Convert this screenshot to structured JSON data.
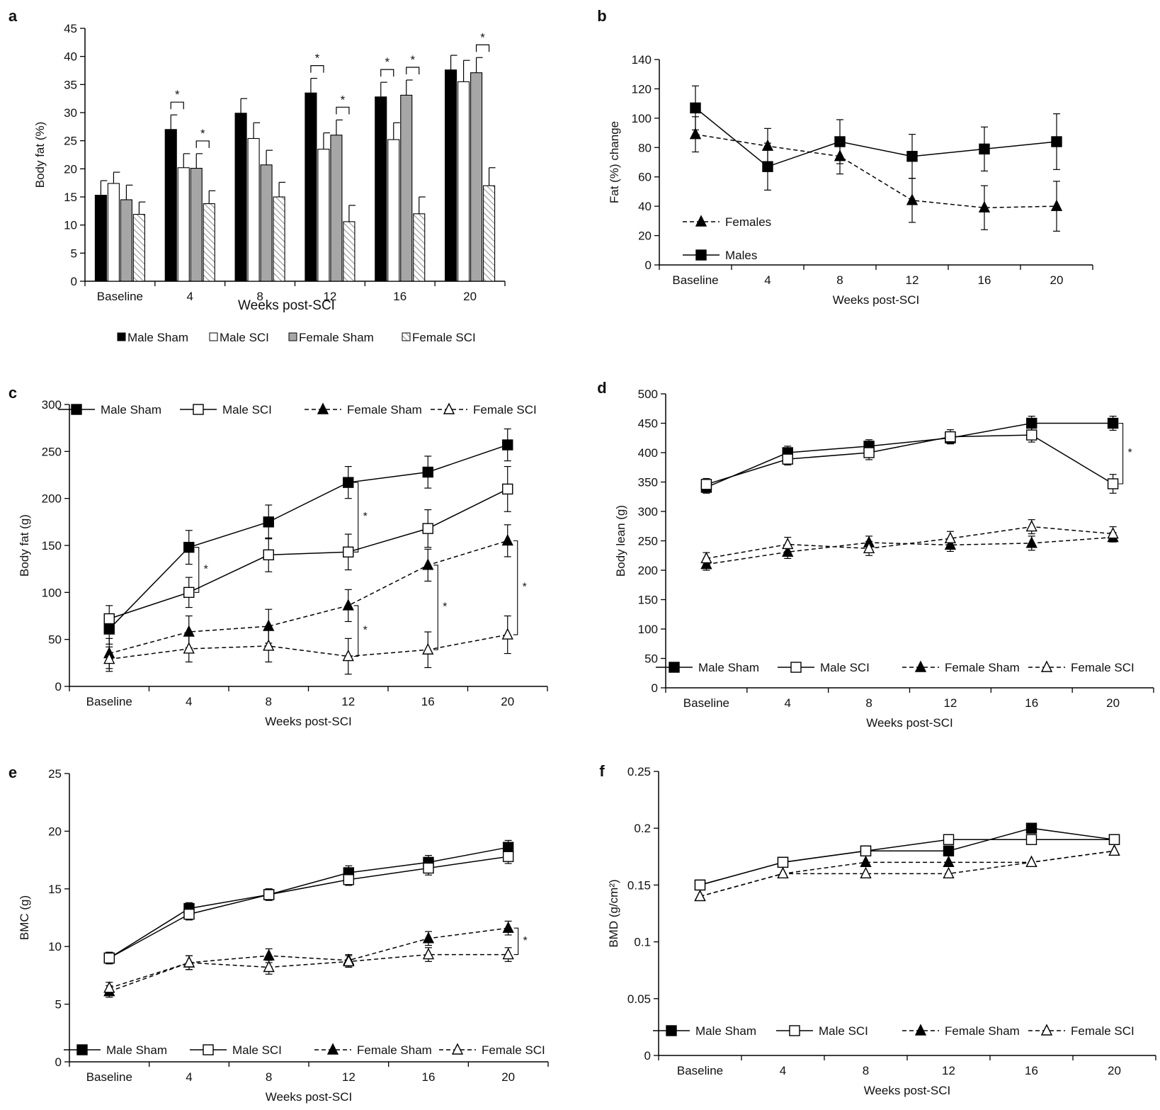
{
  "chart_data": [
    {
      "id": "a",
      "panel_label": "a",
      "type": "bar",
      "categories": [
        "Baseline",
        "4",
        "8",
        "12",
        "16",
        "20"
      ],
      "xlabel": "Weeks post-SCI",
      "ylabel": "Body fat (%)",
      "ylim": [
        0,
        45
      ],
      "yticks": [
        0,
        5,
        10,
        15,
        20,
        25,
        30,
        35,
        40,
        45
      ],
      "series": [
        {
          "name": "Male Sham",
          "fill": "#000000",
          "values": [
            15.3,
            27.0,
            29.9,
            33.5,
            32.8,
            37.6
          ],
          "errors": [
            2.6,
            2.6,
            2.6,
            2.6,
            2.6,
            2.6
          ]
        },
        {
          "name": "Male SCI",
          "fill": "#ffffff",
          "values": [
            17.4,
            20.2,
            25.4,
            23.5,
            25.2,
            35.5
          ],
          "errors": [
            2.0,
            2.5,
            2.8,
            2.9,
            3.0,
            3.8
          ]
        },
        {
          "name": "Female Sham",
          "fill": "#a6a6a6",
          "values": [
            14.5,
            20.1,
            20.7,
            26.0,
            33.1,
            37.1
          ],
          "errors": [
            2.6,
            2.6,
            2.6,
            2.7,
            2.7,
            2.7
          ]
        },
        {
          "name": "Female SCI",
          "fill": "hatch",
          "values": [
            11.9,
            13.8,
            15.0,
            10.6,
            12.0,
            17.0
          ],
          "errors": [
            2.2,
            2.3,
            2.6,
            2.9,
            3.0,
            3.2
          ]
        }
      ],
      "significance": [
        {
          "category": 1,
          "pair": [
            0,
            1
          ],
          "label": "*"
        },
        {
          "category": 1,
          "pair": [
            2,
            3
          ],
          "label": "*"
        },
        {
          "category": 3,
          "pair": [
            0,
            1
          ],
          "label": "*"
        },
        {
          "category": 3,
          "pair": [
            2,
            3
          ],
          "label": "*"
        },
        {
          "category": 4,
          "pair": [
            0,
            1
          ],
          "label": "*"
        },
        {
          "category": 4,
          "pair": [
            2,
            3
          ],
          "label": "*"
        },
        {
          "category": 5,
          "pair": [
            2,
            3
          ],
          "label": "*"
        }
      ],
      "legend": "bottom"
    },
    {
      "id": "b",
      "panel_label": "b",
      "type": "line",
      "categories": [
        "Baseline",
        "4",
        "8",
        "12",
        "16",
        "20"
      ],
      "xlabel": "Weeks post-SCI",
      "ylabel": "Fat (%) change",
      "ylim": [
        0,
        140
      ],
      "yticks": [
        0,
        20,
        40,
        60,
        80,
        100,
        120,
        140
      ],
      "series": [
        {
          "name": "Females",
          "marker": "triangle",
          "filled": true,
          "dashed": true,
          "values": [
            89,
            81,
            74,
            44,
            39,
            40
          ],
          "errors": [
            12,
            12,
            12,
            15,
            15,
            17
          ]
        },
        {
          "name": "Males",
          "marker": "square",
          "filled": true,
          "dashed": false,
          "values": [
            107,
            67,
            84,
            74,
            79,
            84
          ],
          "errors": [
            15,
            16,
            15,
            15,
            15,
            19
          ]
        }
      ],
      "legend": "bottom-left"
    },
    {
      "id": "c",
      "panel_label": "c",
      "type": "line",
      "categories": [
        "Baseline",
        "4",
        "8",
        "12",
        "16",
        "20"
      ],
      "xlabel": "Weeks post-SCI",
      "ylabel": "Body fat (g)",
      "ylim": [
        0,
        300
      ],
      "yticks": [
        0,
        50,
        100,
        150,
        200,
        250,
        300
      ],
      "series": [
        {
          "name": "Male Sham",
          "marker": "square",
          "filled": true,
          "dashed": false,
          "values": [
            61,
            148,
            175,
            217,
            228,
            257
          ],
          "errors": [
            16,
            18,
            18,
            17,
            17,
            17
          ]
        },
        {
          "name": "Male SCI",
          "marker": "square",
          "filled": false,
          "dashed": false,
          "values": [
            72,
            100,
            140,
            143,
            168,
            210
          ],
          "errors": [
            14,
            16,
            18,
            19,
            20,
            24
          ]
        },
        {
          "name": "Female Sham",
          "marker": "triangle",
          "filled": true,
          "dashed": true,
          "values": [
            35,
            58,
            64,
            86,
            129,
            155
          ],
          "errors": [
            16,
            17,
            18,
            17,
            17,
            17
          ]
        },
        {
          "name": "Female SCI",
          "marker": "triangle",
          "filled": false,
          "dashed": true,
          "values": [
            29,
            40,
            43,
            32,
            39,
            55
          ],
          "errors": [
            13,
            14,
            17,
            19,
            19,
            20
          ]
        }
      ],
      "significance": [
        {
          "category": 1,
          "from": 148,
          "to": 100,
          "label": "*"
        },
        {
          "category": 3,
          "from": 217,
          "to": 143,
          "label": "*"
        },
        {
          "category": 3,
          "from": 86,
          "to": 32,
          "label": "*"
        },
        {
          "category": 4,
          "from": 129,
          "to": 39,
          "label": "*"
        },
        {
          "category": 5,
          "from": 155,
          "to": 55,
          "label": "*"
        }
      ],
      "legend": "top"
    },
    {
      "id": "d",
      "panel_label": "d",
      "type": "line",
      "categories": [
        "Baseline",
        "4",
        "8",
        "12",
        "16",
        "20"
      ],
      "xlabel": "Weeks post-SCI",
      "ylabel": "Body lean (g)",
      "ylim": [
        0,
        500
      ],
      "yticks": [
        0,
        50,
        100,
        150,
        200,
        250,
        300,
        350,
        400,
        450,
        500
      ],
      "series": [
        {
          "name": "Male Sham",
          "marker": "square",
          "filled": true,
          "dashed": false,
          "values": [
            341,
            400,
            411,
            425,
            450,
            450
          ],
          "errors": [
            10,
            11,
            11,
            10,
            12,
            12
          ]
        },
        {
          "name": "Male SCI",
          "marker": "square",
          "filled": false,
          "dashed": false,
          "values": [
            346,
            389,
            400,
            427,
            430,
            347
          ],
          "errors": [
            10,
            10,
            12,
            12,
            12,
            16
          ]
        },
        {
          "name": "Female Sham",
          "marker": "triangle",
          "filled": true,
          "dashed": true,
          "values": [
            210,
            231,
            247,
            243,
            246,
            256
          ],
          "errors": [
            10,
            11,
            11,
            11,
            12,
            8
          ]
        },
        {
          "name": "Female SCI",
          "marker": "triangle",
          "filled": false,
          "dashed": true,
          "values": [
            220,
            244,
            237,
            254,
            274,
            262
          ],
          "errors": [
            10,
            12,
            12,
            12,
            12,
            12
          ]
        }
      ],
      "significance": [
        {
          "category": 5,
          "from": 450,
          "to": 347,
          "label": "*"
        }
      ],
      "legend": "bottom"
    },
    {
      "id": "e",
      "panel_label": "e",
      "type": "line",
      "categories": [
        "Baseline",
        "4",
        "8",
        "12",
        "16",
        "20"
      ],
      "xlabel": "Weeks post-SCI",
      "ylabel": "BMC (g)",
      "ylim": [
        0,
        25
      ],
      "yticks": [
        0,
        5,
        10,
        15,
        20,
        25
      ],
      "series": [
        {
          "name": "Male Sham",
          "marker": "square",
          "filled": true,
          "dashed": false,
          "values": [
            9.0,
            13.3,
            14.5,
            16.4,
            17.3,
            18.6
          ],
          "errors": [
            0.5,
            0.5,
            0.5,
            0.6,
            0.6,
            0.6
          ]
        },
        {
          "name": "Male SCI",
          "marker": "square",
          "filled": false,
          "dashed": false,
          "values": [
            9.0,
            12.8,
            14.5,
            15.8,
            16.8,
            17.8
          ],
          "errors": [
            0.5,
            0.5,
            0.5,
            0.5,
            0.6,
            0.6
          ]
        },
        {
          "name": "Female Sham",
          "marker": "triangle",
          "filled": true,
          "dashed": true,
          "values": [
            6.1,
            8.6,
            9.2,
            8.8,
            10.7,
            11.6
          ],
          "errors": [
            0.5,
            0.6,
            0.6,
            0.5,
            0.6,
            0.6
          ]
        },
        {
          "name": "Female SCI",
          "marker": "triangle",
          "filled": false,
          "dashed": true,
          "values": [
            6.4,
            8.6,
            8.2,
            8.7,
            9.3,
            9.3
          ],
          "errors": [
            0.5,
            0.6,
            0.6,
            0.5,
            0.6,
            0.6
          ]
        }
      ],
      "significance": [
        {
          "category": 5,
          "from": 11.6,
          "to": 9.3,
          "label": "*"
        }
      ],
      "legend": "bottom"
    },
    {
      "id": "f",
      "panel_label": "f",
      "type": "line",
      "categories": [
        "Baseline",
        "4",
        "8",
        "12",
        "16",
        "20"
      ],
      "xlabel": "Weeks post-SCI",
      "ylabel": "BMD (g/cm²)",
      "ylim": [
        0,
        0.25
      ],
      "yticks": [
        "0",
        "0.05",
        "0.1",
        "0.15",
        "0.2",
        "0.25"
      ],
      "series": [
        {
          "name": "Male Sham",
          "marker": "square",
          "filled": true,
          "dashed": false,
          "values": [
            0.15,
            0.17,
            0.18,
            0.18,
            0.2,
            0.19
          ],
          "errors": [
            0,
            0,
            0,
            0,
            0,
            0
          ]
        },
        {
          "name": "Male SCI",
          "marker": "square",
          "filled": false,
          "dashed": false,
          "values": [
            0.15,
            0.17,
            0.18,
            0.19,
            0.19,
            0.19
          ],
          "errors": [
            0,
            0,
            0,
            0,
            0,
            0
          ]
        },
        {
          "name": "Female Sham",
          "marker": "triangle",
          "filled": true,
          "dashed": true,
          "values": [
            0.14,
            0.16,
            0.17,
            0.17,
            0.17,
            0.18
          ],
          "errors": [
            0,
            0,
            0,
            0,
            0,
            0
          ]
        },
        {
          "name": "Female SCI",
          "marker": "triangle",
          "filled": false,
          "dashed": true,
          "values": [
            0.14,
            0.16,
            0.16,
            0.16,
            0.17,
            0.18
          ],
          "errors": [
            0,
            0,
            0,
            0,
            0,
            0
          ]
        }
      ],
      "legend": "bottom"
    }
  ]
}
